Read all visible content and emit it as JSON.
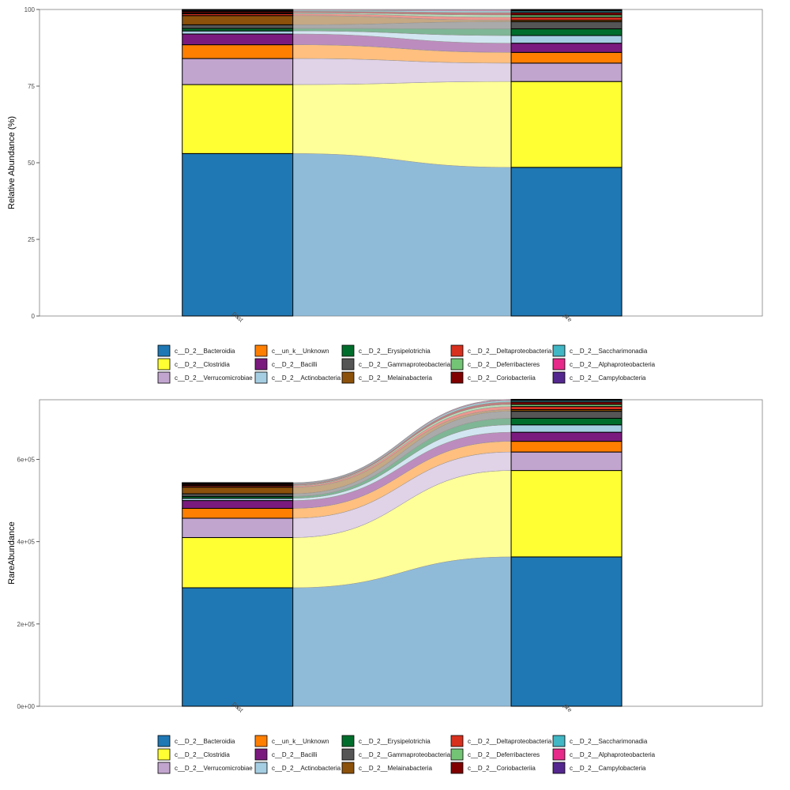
{
  "legend_taxa": [
    {
      "name": "c__D_2__Bacteroidia",
      "color": "#1F78B4"
    },
    {
      "name": "c__D_2__Clostridia",
      "color": "#FFFF33"
    },
    {
      "name": "c__D_2__Verrucomicrobiae",
      "color": "#C2A5CF"
    },
    {
      "name": "c__un_k__Unknown",
      "color": "#FF7F00"
    },
    {
      "name": "c__D_2__Bacilli",
      "color": "#7B1A7E"
    },
    {
      "name": "c__D_2__Actinobacteria",
      "color": "#A6CEE3"
    },
    {
      "name": "c__D_2__Erysipelotrichia",
      "color": "#006D2C"
    },
    {
      "name": "c__D_2__Gammaproteobacteria",
      "color": "#555555"
    },
    {
      "name": "c__D_2__Melainabacteria",
      "color": "#8C510A"
    },
    {
      "name": "c__D_2__Deltaproteobacteria",
      "color": "#D7301F"
    },
    {
      "name": "c__D_2__Deferribacteres",
      "color": "#74C476"
    },
    {
      "name": "c__D_2__Coriobacteriia",
      "color": "#800000"
    },
    {
      "name": "c__D_2__Saccharimonadia",
      "color": "#41B6C4"
    },
    {
      "name": "c__D_2__Alphaproteobacteria",
      "color": "#E7298A"
    },
    {
      "name": "c__D_2__Campylobacteria",
      "color": "#54278F"
    }
  ],
  "chart_data": [
    {
      "type": "alluvial-stacked-bar",
      "ylabel": "Relative Abundance (%)",
      "categories": [
        "post",
        "pre"
      ],
      "ylim": [
        0,
        100
      ],
      "yticks": [
        0,
        25,
        50,
        75,
        100
      ],
      "ytick_labels": [
        "0",
        "25",
        "50",
        "75",
        "100"
      ],
      "legend_position": "bottom",
      "grid": false,
      "series": [
        {
          "name": "c__D_2__Bacteroidia",
          "values": [
            53.0,
            48.5
          ]
        },
        {
          "name": "c__D_2__Clostridia",
          "values": [
            22.5,
            28.0
          ]
        },
        {
          "name": "c__D_2__Verrucomicrobiae",
          "values": [
            8.5,
            6.0
          ]
        },
        {
          "name": "c__un_k__Unknown",
          "values": [
            4.5,
            3.5
          ]
        },
        {
          "name": "c__D_2__Bacilli",
          "values": [
            3.5,
            3.0
          ]
        },
        {
          "name": "c__D_2__Actinobacteria",
          "values": [
            1.0,
            2.5
          ]
        },
        {
          "name": "c__D_2__Erysipelotrichia",
          "values": [
            0.8,
            2.2
          ]
        },
        {
          "name": "c__D_2__Gammaproteobacteria",
          "values": [
            1.2,
            2.3
          ]
        },
        {
          "name": "c__D_2__Melainabacteria",
          "values": [
            3.0,
            0.5
          ]
        },
        {
          "name": "c__D_2__Deltaproteobacteria",
          "values": [
            0.6,
            1.0
          ]
        },
        {
          "name": "c__D_2__Deferribacteres",
          "values": [
            0.3,
            0.7
          ]
        },
        {
          "name": "c__D_2__Coriobacteriia",
          "values": [
            0.5,
            0.8
          ]
        },
        {
          "name": "c__D_2__Saccharimonadia",
          "values": [
            0.3,
            0.5
          ]
        },
        {
          "name": "c__D_2__Alphaproteobacteria",
          "values": [
            0.2,
            0.3
          ]
        },
        {
          "name": "c__D_2__Campylobacteria",
          "values": [
            0.1,
            0.2
          ]
        }
      ]
    },
    {
      "type": "alluvial-stacked-bar",
      "ylabel": "RareAbundance",
      "categories": [
        "post",
        "pre"
      ],
      "ylim": [
        0,
        745000
      ],
      "yticks": [
        0,
        200000,
        400000,
        600000
      ],
      "ytick_labels": [
        "0e+00",
        "2e+05",
        "4e+05",
        "6e+05"
      ],
      "legend_position": "bottom",
      "grid": false,
      "series": [
        {
          "name": "c__D_2__Bacteroidia",
          "values": [
            288000,
            363000
          ]
        },
        {
          "name": "c__D_2__Clostridia",
          "values": [
            122000,
            210000
          ]
        },
        {
          "name": "c__D_2__Verrucomicrobiae",
          "values": [
            47000,
            45000
          ]
        },
        {
          "name": "c__un_k__Unknown",
          "values": [
            24000,
            26000
          ]
        },
        {
          "name": "c__D_2__Bacilli",
          "values": [
            19000,
            22000
          ]
        },
        {
          "name": "c__D_2__Actinobacteria",
          "values": [
            5500,
            18000
          ]
        },
        {
          "name": "c__D_2__Erysipelotrichia",
          "values": [
            4500,
            16000
          ]
        },
        {
          "name": "c__D_2__Gammaproteobacteria",
          "values": [
            6500,
            17000
          ]
        },
        {
          "name": "c__D_2__Melainabacteria",
          "values": [
            16000,
            4000
          ]
        },
        {
          "name": "c__D_2__Deltaproteobacteria",
          "values": [
            3300,
            7500
          ]
        },
        {
          "name": "c__D_2__Deferribacteres",
          "values": [
            1600,
            5000
          ]
        },
        {
          "name": "c__D_2__Coriobacteriia",
          "values": [
            2700,
            6000
          ]
        },
        {
          "name": "c__D_2__Saccharimonadia",
          "values": [
            1600,
            3500
          ]
        },
        {
          "name": "c__D_2__Alphaproteobacteria",
          "values": [
            1100,
            2000
          ]
        },
        {
          "name": "c__D_2__Campylobacteria",
          "values": [
            600,
            1000
          ]
        }
      ]
    }
  ]
}
